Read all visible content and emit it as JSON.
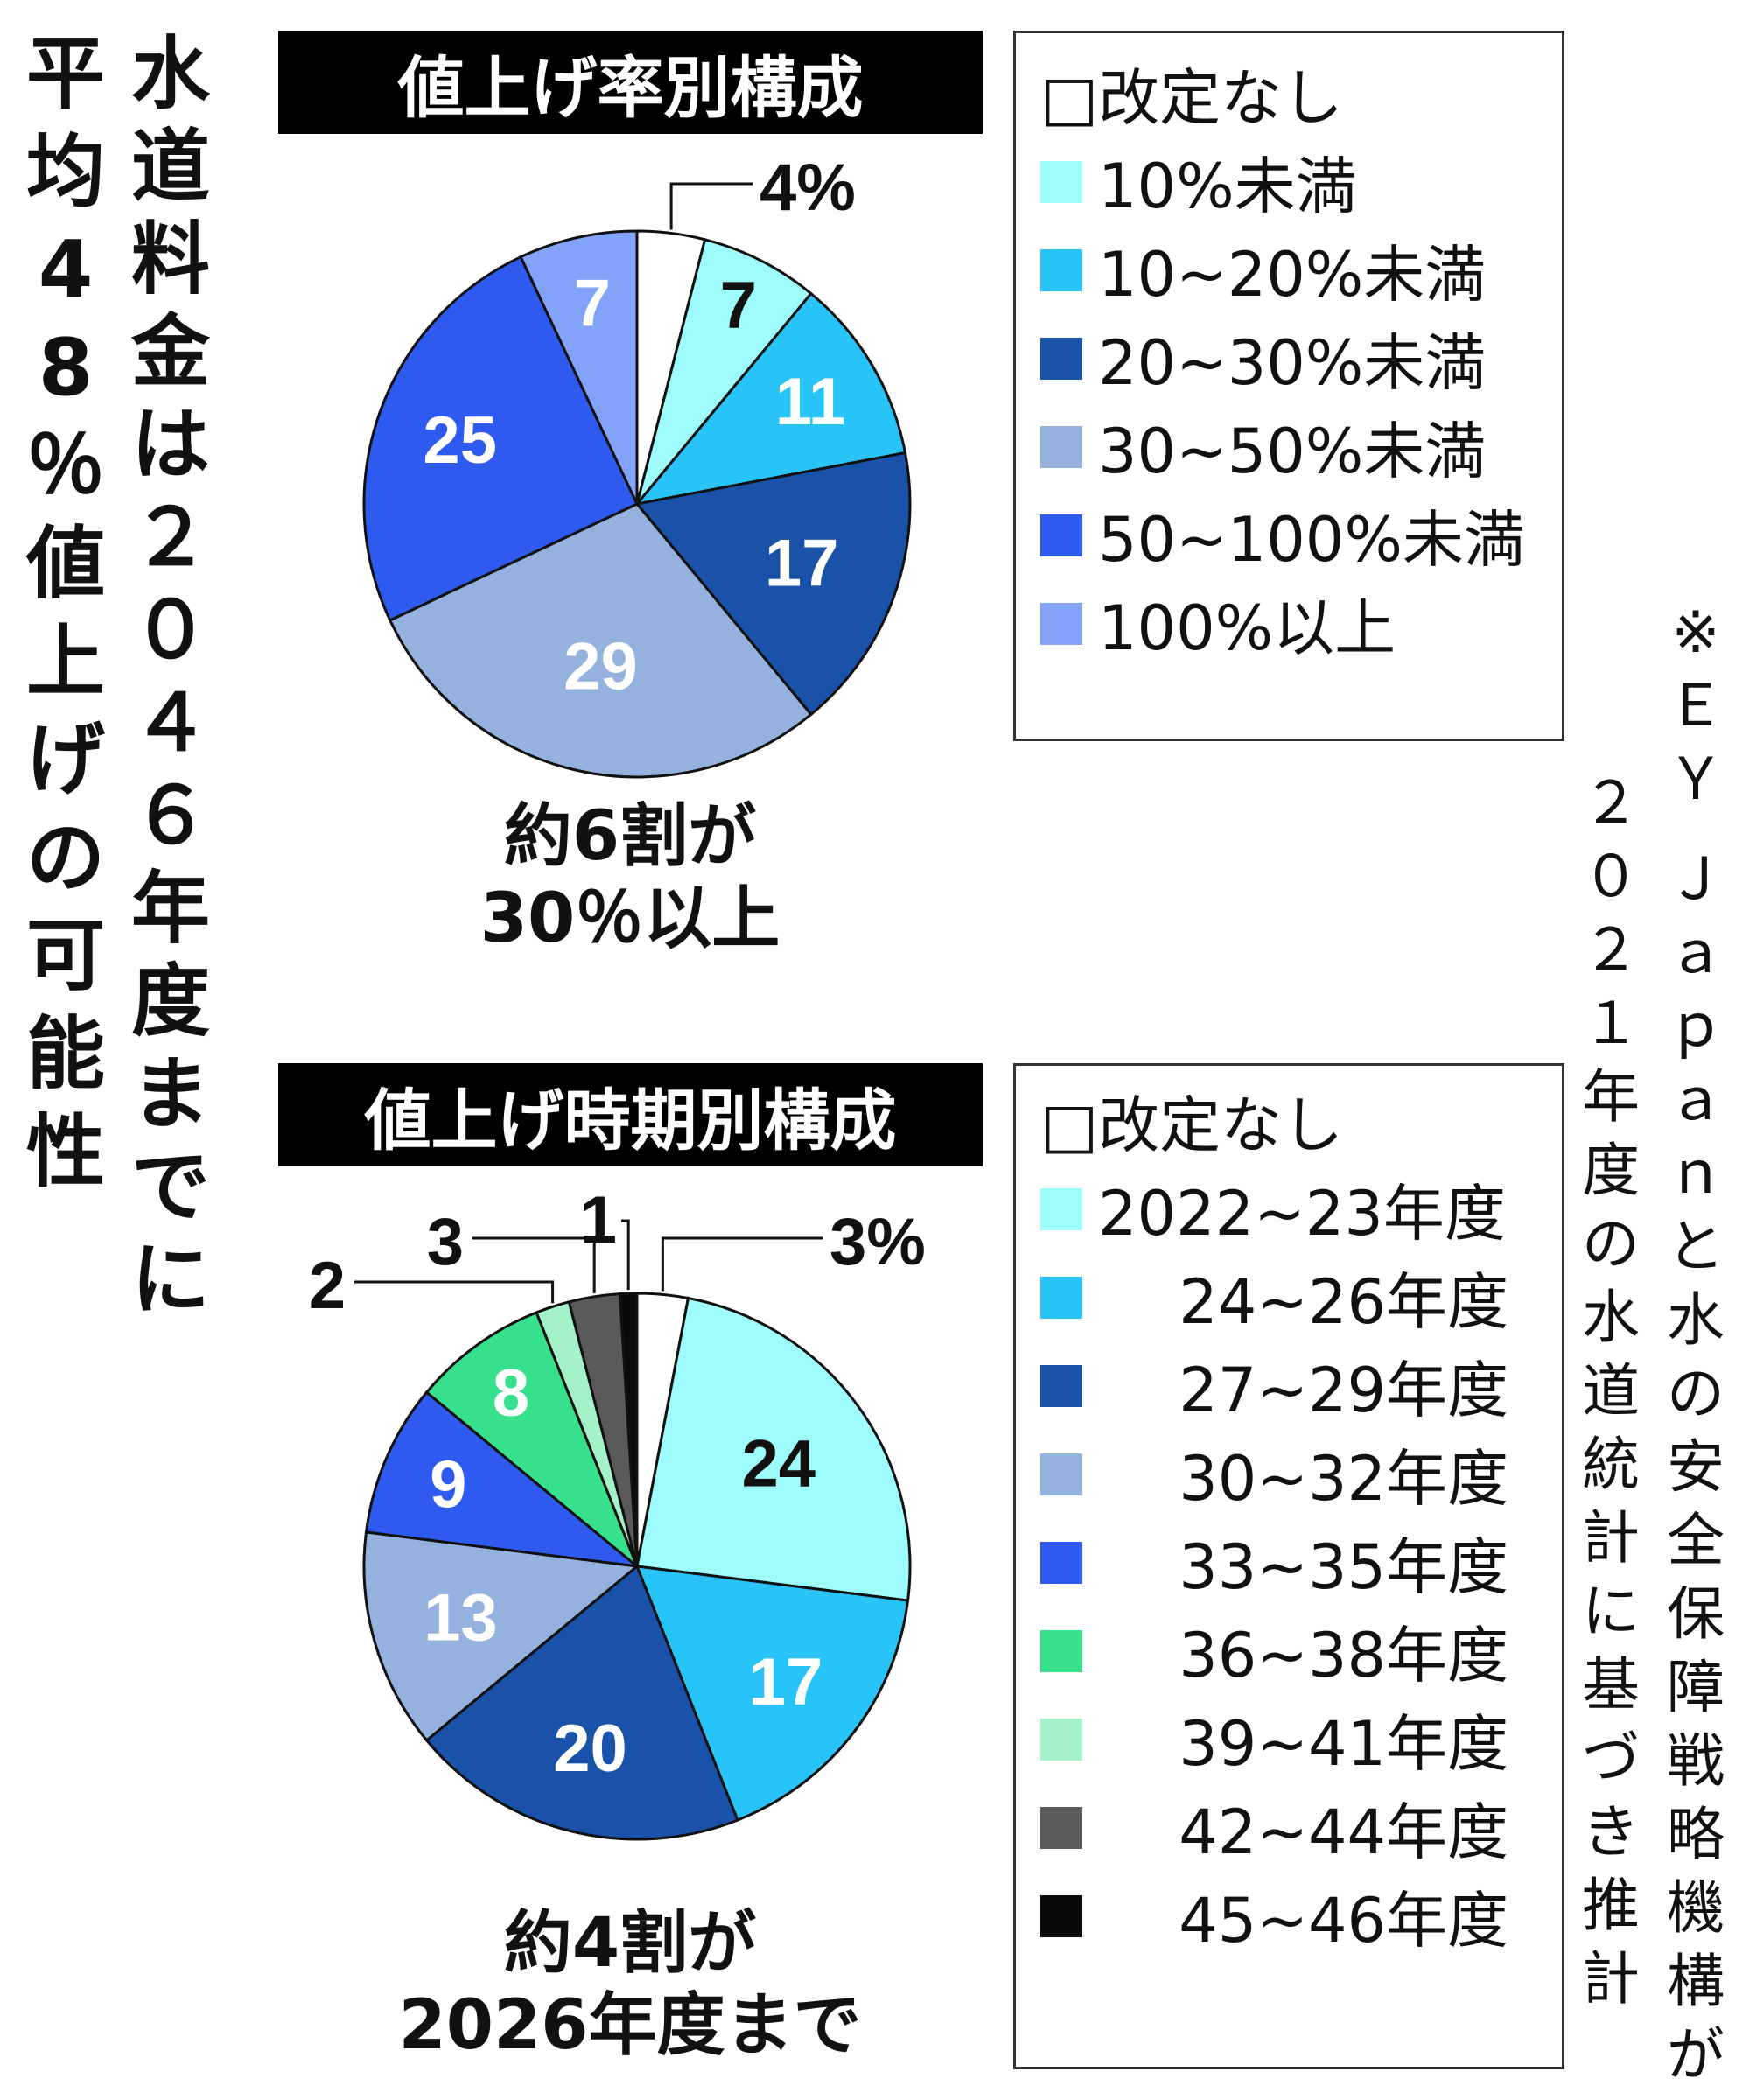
{
  "title": "水道料金は２０４６年度までに",
  "subtitle": "平均48％値上げの可能性",
  "source_note_line1": "※ＥＹ Ｊａｐａｎと水の安全保障戦略機構が",
  "source_note_line2": "２０２１年度の水道統計に基づき推計",
  "charts": [
    {
      "heading": "値上げ率別構成",
      "caption_line1": "約6割が",
      "caption_line2": "30％以上",
      "first_label_suffix": "%"
    },
    {
      "heading": "値上げ時期別構成",
      "caption_line1": "約4割が",
      "caption_line2": "2026年度まで",
      "first_label_suffix": "%"
    }
  ],
  "chart_data": [
    {
      "type": "pie",
      "title": "値上げ率別構成",
      "categories": [
        "改定なし",
        "10%未満",
        "10~20%未満",
        "20~30%未満",
        "30~50%未満",
        "50~100%未満",
        "100%以上"
      ],
      "legend_labels": [
        "□改定なし",
        "10%未満",
        "10~20%未満",
        "20~30%未満",
        "30~50%未満",
        "50~100%未満",
        "100%以上"
      ],
      "values": [
        4,
        7,
        11,
        17,
        29,
        25,
        7
      ],
      "colors": [
        "#ffffff",
        "#9ffcfc",
        "#28c3f7",
        "#1a52aa",
        "#95b1de",
        "#2f5af0",
        "#83a2f9"
      ],
      "label_colors": [
        "#111111",
        "#111111",
        "#ffffff",
        "#ffffff",
        "#ffffff",
        "#ffffff",
        "#ffffff"
      ],
      "unit": "%",
      "legend_position": "right"
    },
    {
      "type": "pie",
      "title": "値上げ時期別構成",
      "categories": [
        "改定なし",
        "2022~23年度",
        "24~26年度",
        "27~29年度",
        "30~32年度",
        "33~35年度",
        "36~38年度",
        "39~41年度",
        "42~44年度",
        "45~46年度"
      ],
      "legend_labels": [
        "□改定なし",
        "2022~23年度",
        "　 24~26年度",
        "　 27~29年度",
        "　 30~32年度",
        "　 33~35年度",
        "　 36~38年度",
        "　 39~41年度",
        "　 42~44年度",
        "　 45~46年度"
      ],
      "values": [
        3,
        24,
        17,
        20,
        13,
        9,
        8,
        2,
        3,
        1
      ],
      "colors": [
        "#ffffff",
        "#9ffcfc",
        "#28c3f7",
        "#1a52aa",
        "#95b1de",
        "#2f5af0",
        "#36e08c",
        "#a4f2c8",
        "#5a5a5a",
        "#0a0a0a"
      ],
      "label_colors": [
        "#111111",
        "#111111",
        "#ffffff",
        "#ffffff",
        "#ffffff",
        "#ffffff",
        "#ffffff",
        "#111111",
        "#111111",
        "#111111"
      ],
      "unit": "%",
      "legend_position": "right"
    }
  ]
}
